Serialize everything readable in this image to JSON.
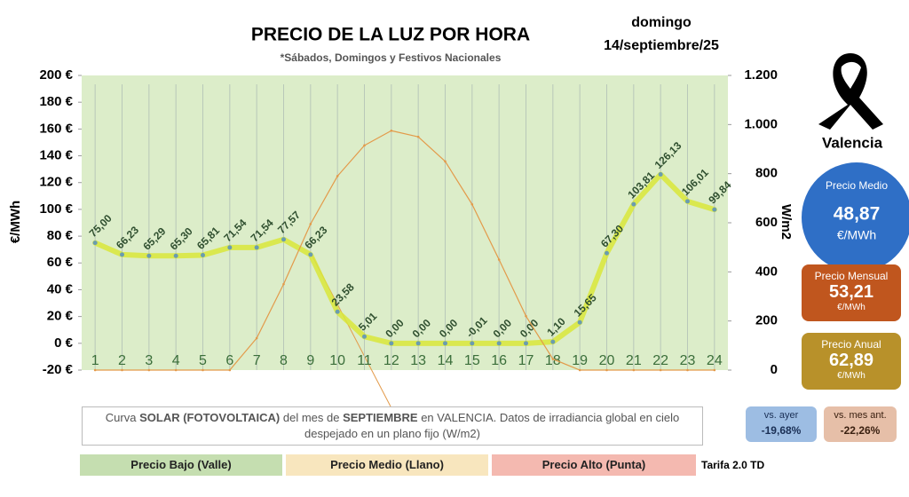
{
  "chart_data": {
    "type": "line",
    "title": "PRECIO DE LA LUZ POR HORA",
    "subtitle": "*Sábados, Domingos y Festivos Nacionales",
    "date": [
      "domingo",
      "14/septiembre/25"
    ],
    "ylabel": "€/MWh",
    "y2label": "W/m2",
    "categories": [
      "1",
      "2",
      "3",
      "4",
      "5",
      "6",
      "7",
      "8",
      "9",
      "10",
      "11",
      "12",
      "13",
      "14",
      "15",
      "16",
      "17",
      "18",
      "19",
      "20",
      "21",
      "22",
      "23",
      "24"
    ],
    "series": [
      {
        "name": "Precio",
        "color": "#d9e63a",
        "values": [
          75.0,
          66.23,
          65.29,
          65.3,
          65.81,
          71.54,
          71.54,
          77.57,
          66.23,
          23.58,
          5.01,
          0.0,
          0.0,
          0.0,
          -0.01,
          0.0,
          0.0,
          1.1,
          15.65,
          67.3,
          103.81,
          126.13,
          106.01,
          99.84
        ],
        "value_labels": [
          "75,00",
          "66,23",
          "65,29",
          "65,30",
          "65,81",
          "71,54",
          "71,54",
          "77,57",
          "66,23",
          "23,58",
          "5,01",
          "0,00",
          "0,00",
          "0,00",
          "-0,01",
          "0,00",
          "0,00",
          "1,10",
          "15,65",
          "67,30",
          "103,81",
          "126,13",
          "106,01",
          "99,84"
        ]
      },
      {
        "name": "Solar",
        "color": "#e39a4a",
        "axis": "y2",
        "values": [
          0,
          0,
          0,
          0,
          0,
          0,
          130,
          350,
          595,
          790,
          915,
          975,
          950,
          850,
          675,
          450,
          220,
          45,
          0,
          0,
          0,
          0,
          0,
          0
        ]
      }
    ],
    "ylim": [
      -20,
      200
    ],
    "yticks": [
      {
        "value": -20,
        "label": "-20 €"
      },
      {
        "value": 0,
        "label": "0 €"
      },
      {
        "value": 20,
        "label": "20 €"
      },
      {
        "value": 40,
        "label": "40 €"
      },
      {
        "value": 60,
        "label": "60 €"
      },
      {
        "value": 80,
        "label": "80 €"
      },
      {
        "value": 100,
        "label": "100 €"
      },
      {
        "value": 120,
        "label": "120 €"
      },
      {
        "value": 140,
        "label": "140 €"
      },
      {
        "value": 160,
        "label": "160 €"
      },
      {
        "value": 180,
        "label": "180 €"
      },
      {
        "value": 200,
        "label": "200 €"
      }
    ],
    "y2lim": [
      0,
      1200
    ],
    "y2ticks": [
      0,
      200,
      400,
      600,
      800,
      {
        "value": 1000,
        "label": "1.000"
      },
      {
        "value": 1200,
        "label": "1.200"
      }
    ],
    "grid": false
  },
  "panel": {
    "city": "Valencia",
    "medio": {
      "label": "Precio Medio",
      "value": "48,87",
      "unit": "€/MWh"
    },
    "mensual": {
      "label": "Precio Mensual",
      "value": "53,21",
      "unit": "€/MWh"
    },
    "anual": {
      "label": "Precio Anual",
      "value": "62,89",
      "unit": "€/MWh"
    },
    "ayer": {
      "label": "vs. ayer",
      "value": "-19,68%"
    },
    "mes": {
      "label": "vs. mes ant.",
      "value": "-22,26%"
    }
  },
  "note": [
    "Curva ",
    "SOLAR (FOTOVOLTAICA)",
    " del mes de ",
    "SEPTIEMBRE",
    " en VALENCIA. Datos de irradiancia global en cielo despejado en un plano fijo (W/m2)"
  ],
  "bands": [
    "Precio Bajo (Valle)",
    "Precio Medio (Llano)",
    "Precio Alto (Punta)"
  ],
  "tarifa": "Tarifa 2.0 TD"
}
